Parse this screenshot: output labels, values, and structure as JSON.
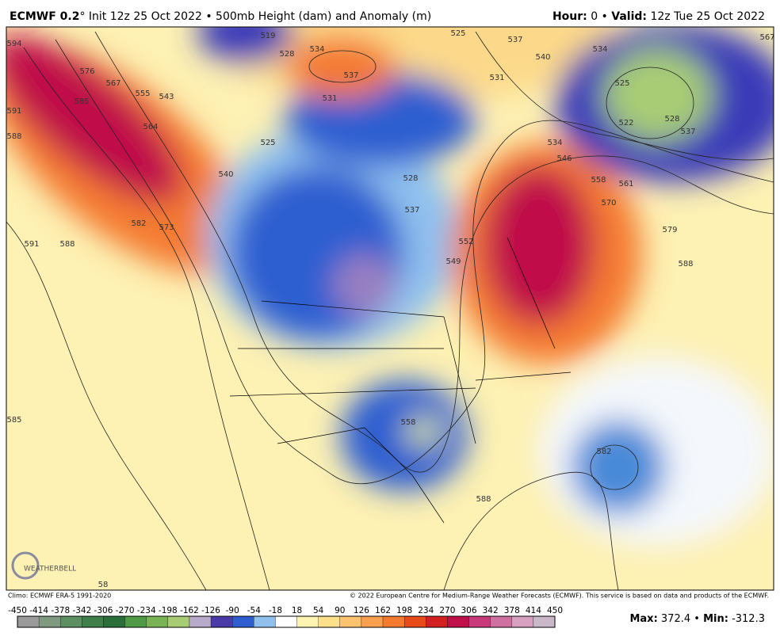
{
  "header": {
    "model": "ECMWF 0.2",
    "degree": "°",
    "title": "Init 12z 25 Oct 2022 • 500mb Height (dam) and Anomaly (m)",
    "hour_label": "Hour:",
    "hour": "0 •",
    "valid_label": "Valid:",
    "valid": "12z Tue 25 Oct 2022"
  },
  "map": {
    "brand": "WEATHERBELL",
    "contour_labels": [
      594,
      576,
      567,
      555,
      543,
      585,
      591,
      588,
      564,
      582,
      573,
      591,
      588,
      585,
      519,
      528,
      534,
      537,
      531,
      525,
      540,
      525,
      537,
      540,
      531,
      534,
      546,
      558,
      561,
      570,
      579,
      588,
      528,
      537,
      549,
      552,
      534,
      525,
      522,
      528,
      537,
      567,
      558,
      582,
      588,
      58
    ]
  },
  "footer": {
    "climo": "Climo: ECMWF ERA-5 1991-2020",
    "copyright": "© 2022 European Centre for Medium-Range Weather Forecasts (ECMWF). This service is based on data and products of the ECMWF."
  },
  "colorbar": {
    "ticks": [
      -450,
      -414,
      -378,
      -342,
      -306,
      -270,
      -234,
      -198,
      -162,
      -126,
      -90,
      -54,
      -18,
      18,
      54,
      90,
      126,
      162,
      198,
      234,
      270,
      306,
      342,
      378,
      414,
      450
    ],
    "colors": [
      "#9a9a9a",
      "#7f9a80",
      "#5e8f62",
      "#3f7f4a",
      "#2a6f3a",
      "#4f9a45",
      "#7ab356",
      "#a7cc74",
      "#b7a9c9",
      "#4a3aa8",
      "#2e5ed0",
      "#8fc0ee",
      "#ffffff",
      "#fdf3b0",
      "#fde08a",
      "#fcc470",
      "#f9a050",
      "#f47a30",
      "#e84a1a",
      "#d42020",
      "#c0104a",
      "#c83a7a",
      "#d070a0",
      "#d8a0c0",
      "#c8b8c8"
    ]
  },
  "stats": {
    "max_label": "Max:",
    "max": 372.4,
    "separator": "•",
    "min_label": "Min:",
    "min": -312.3
  }
}
